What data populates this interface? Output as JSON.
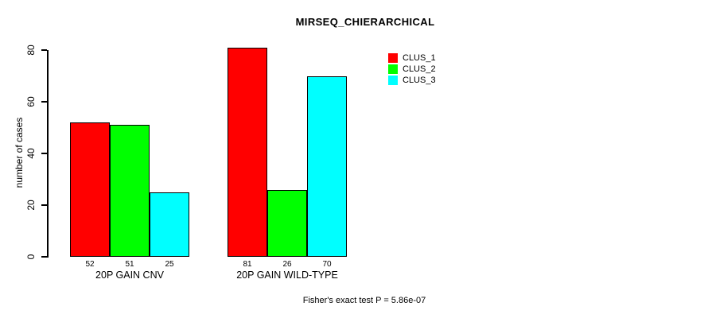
{
  "chart_data": {
    "type": "bar",
    "title": "MIRSEQ_CHIERARCHICAL",
    "ylabel": "number of cases",
    "xlabel": "",
    "ylim": [
      0,
      80
    ],
    "yticks": [
      0,
      20,
      40,
      60,
      80
    ],
    "categories": [
      "20P GAIN CNV",
      "20P GAIN WILD-TYPE"
    ],
    "series": [
      {
        "name": "CLUS_1",
        "color": "#ff0000",
        "values": [
          52,
          81
        ]
      },
      {
        "name": "CLUS_2",
        "color": "#00ff00",
        "values": [
          51,
          26
        ]
      },
      {
        "name": "CLUS_3",
        "color": "#00ffff",
        "values": [
          25,
          70
        ]
      }
    ],
    "bar_value_labels": [
      [
        52,
        51,
        25
      ],
      [
        81,
        26,
        70
      ]
    ],
    "legend_position": "top-right",
    "grid": "off",
    "footnote": "Fisher's exact test P = 5.86e-07"
  },
  "colors": {
    "background": "#ffffff",
    "axis": "#000000",
    "text": "#000000",
    "clus_1": "#ff0000",
    "clus_2": "#00ff00",
    "clus_3": "#00ffff"
  }
}
